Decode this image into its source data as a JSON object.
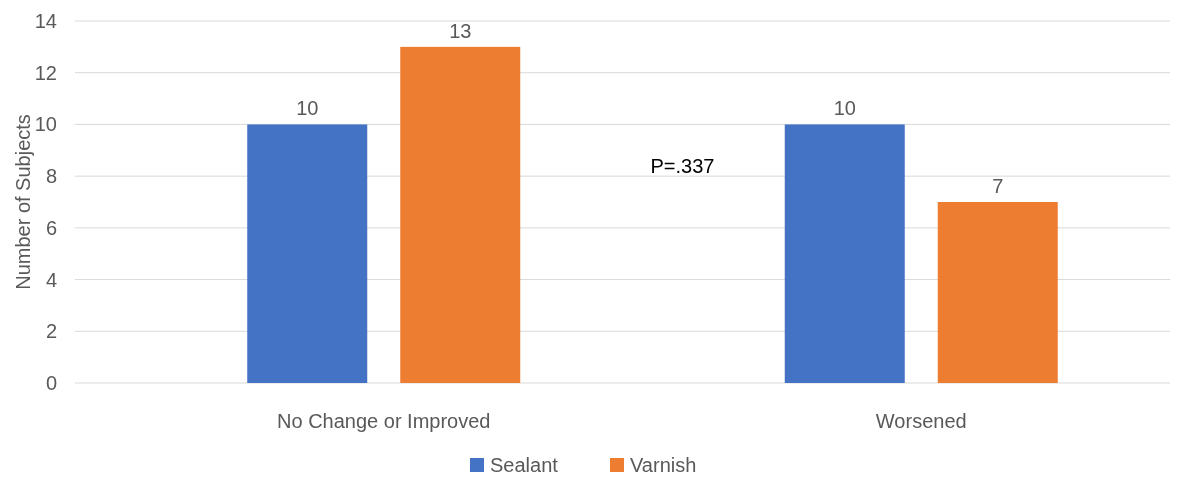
{
  "chart_data": {
    "type": "bar",
    "ylabel": "Number of Subjects",
    "categories": [
      "No Change or Improved",
      "Worsened"
    ],
    "series": [
      {
        "name": "Sealant",
        "color": "#4472c4",
        "values": [
          10,
          10
        ]
      },
      {
        "name": "Varnish",
        "color": "#ed7d31",
        "values": [
          13,
          7
        ]
      }
    ],
    "ylim": [
      0,
      14
    ],
    "yticks": [
      0,
      2,
      4,
      6,
      8,
      10,
      12,
      14
    ],
    "grid": "y",
    "legend": "bottom",
    "data_labels": true,
    "annotations": [
      "P=.337"
    ]
  }
}
